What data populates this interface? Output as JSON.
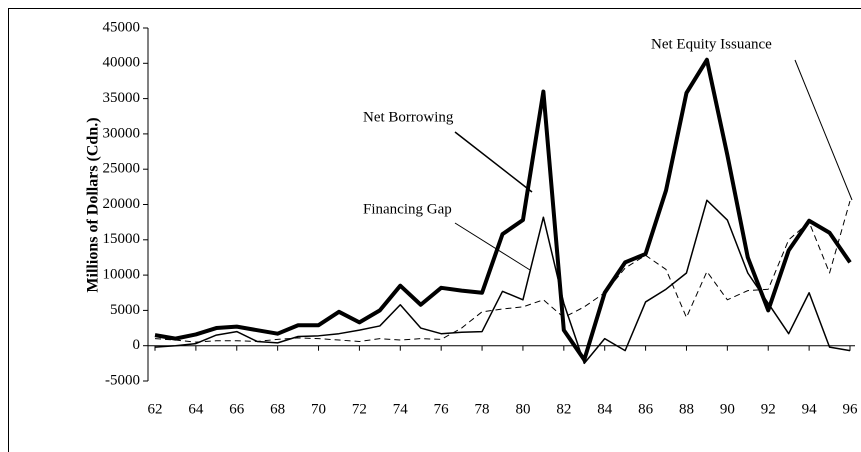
{
  "chart_data": {
    "type": "line",
    "ylabel": "Millions of Dollars (Cdn.)",
    "x": [
      62,
      63,
      64,
      65,
      66,
      67,
      68,
      69,
      70,
      71,
      72,
      73,
      74,
      75,
      76,
      77,
      78,
      79,
      80,
      81,
      82,
      83,
      84,
      85,
      86,
      87,
      88,
      89,
      90,
      91,
      92,
      93,
      94,
      95,
      96
    ],
    "series": [
      {
        "name": "Net Borrowing",
        "color": "#000000",
        "width": 4,
        "dash": false,
        "values": [
          1500,
          1000,
          1600,
          2500,
          2700,
          2200,
          1700,
          2900,
          2900,
          4800,
          3300,
          5000,
          8500,
          5800,
          8200,
          7800,
          7500,
          15800,
          17800,
          36000,
          2200,
          -2000,
          7500,
          11800,
          13000,
          22000,
          35800,
          40500,
          27000,
          12500,
          5000,
          13500,
          17700,
          16000,
          11800
        ]
      },
      {
        "name": "Financing Gap",
        "color": "#000000",
        "width": 1.5,
        "dash": false,
        "values": [
          -200,
          0,
          300,
          1500,
          2000,
          600,
          400,
          1300,
          1400,
          1700,
          2200,
          2800,
          5800,
          2500,
          1700,
          1900,
          2000,
          7700,
          6500,
          18200,
          6000,
          -2500,
          1000,
          -700,
          6200,
          8000,
          10300,
          20600,
          17800,
          10300,
          6000,
          1700,
          7500,
          -200,
          -700
        ]
      },
      {
        "name": "Net Equity Issuance",
        "color": "#000000",
        "width": 1,
        "dash": true,
        "values": [
          1000,
          800,
          500,
          700,
          700,
          600,
          900,
          1100,
          1000,
          800,
          600,
          1000,
          800,
          1000,
          900,
          2500,
          4800,
          5200,
          5500,
          6500,
          4000,
          5500,
          7500,
          11000,
          12800,
          10800,
          4000,
          10500,
          6500,
          7800,
          8000,
          15000,
          17500,
          10300,
          20500
        ]
      }
    ],
    "xlim": [
      62,
      96
    ],
    "xticks": [
      62,
      64,
      66,
      68,
      70,
      72,
      74,
      76,
      78,
      80,
      82,
      84,
      86,
      88,
      90,
      92,
      94,
      96
    ],
    "ylim": [
      -5000,
      45000
    ],
    "yticks": [
      -5000,
      0,
      5000,
      10000,
      15000,
      20000,
      25000,
      30000,
      35000,
      40000,
      45000
    ]
  }
}
